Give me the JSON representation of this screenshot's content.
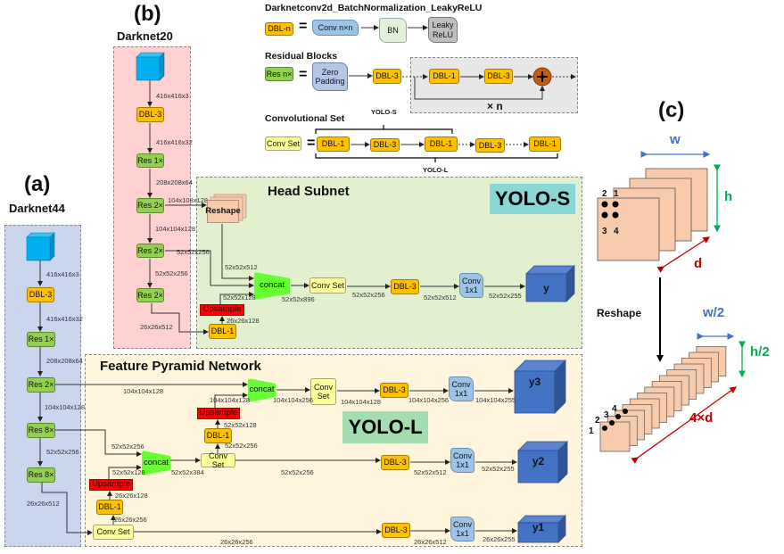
{
  "colors": {
    "dbl": "#FFC000",
    "res": "#92D050",
    "conv_set": "#FFFF99",
    "upsample": "#FF0000",
    "concat": "#66FF33",
    "conv1x1": "#9DC3E6",
    "output": "#4472C4",
    "input": "#00B0F0",
    "darknet44_bg": "#C9D6EE",
    "darknet20_bg": "#FFD1D1",
    "head_bg": "#E2F0D0",
    "fpn_bg": "#FFF5DD",
    "yolo_s_badge": "#8AD7D7",
    "yolo_l_badge": "#A3DDB0",
    "w": "#4472C4",
    "h": "#00B050",
    "d": "#C00000"
  },
  "legend": {
    "dbl_title": "Darknetconv2d_BatchNormalization_LeakyReLU",
    "dbl_n": "DBL-n",
    "equals": "=",
    "conv_nxn": "Conv n×n",
    "bn": "BN",
    "leaky_relu": "Leaky\nReLU",
    "res_title": "Residual Blocks",
    "res_n": "Res n×",
    "zero_padding": "Zero\nPadding",
    "res_dbl3": "DBL-3",
    "loop_dbl1": "DBL-1",
    "loop_dbl3": "DBL-3",
    "times_n": "× n",
    "convset_title": "Convolutional Set",
    "conv_set": "Conv Set",
    "yolo_s": "YOLO-S",
    "yolo_l": "YOLO-L",
    "sequence": [
      "DBL-1",
      "DBL-3",
      "DBL-1",
      "DBL-3",
      "DBL-1"
    ]
  },
  "darknet44": {
    "label": "(a)",
    "title": "Darknet44",
    "blocks": [
      "DBL-3",
      "Res 1×",
      "Res 2×",
      "Res 8×",
      "Res 8×"
    ],
    "dims": [
      "416x416x3",
      "416x416x32",
      "208x208x64",
      "104x104x128",
      "52x52x256",
      "26x26x512"
    ]
  },
  "darknet20": {
    "label": "(b)",
    "title": "Darknet20",
    "blocks": [
      "DBL-3",
      "Res 1×",
      "Res 2×",
      "Res 2×",
      "Res 2×"
    ],
    "dims": [
      "416x416x3",
      "416x416x32",
      "208x208x64",
      "104x108x128",
      "104x104x128",
      "52x52x256",
      "52x52x256",
      "26x26x512"
    ]
  },
  "head_subnet": {
    "title": "Head Subnet",
    "badge": "YOLO-S",
    "reshape": "Reshape",
    "concat": "concat",
    "upsample": "Upsample",
    "dbl1": "DBL-1",
    "conv_set": "Conv Set",
    "dbl3": "DBL-3",
    "conv1x1": "Conv\n1x1",
    "output": "y",
    "dims": [
      "52x52x512",
      "52x52x128",
      "26x26x128",
      "52x52x896",
      "52x52x256",
      "52x52x512",
      "52x52x255"
    ]
  },
  "fpn": {
    "title": "Feature Pyramid Network",
    "badge": "YOLO-L",
    "row1": {
      "concat": "concat",
      "upsample": "Upsample",
      "dbl1": "DBL-1",
      "conv_set": "Conv\nSet",
      "dbl3": "DBL-3",
      "conv1x1": "Conv\n1x1",
      "output": "y3",
      "dims": [
        "104x104x128",
        "104x104x128",
        "52x52x128",
        "52x52x256",
        "104x104x256",
        "104x104x128",
        "104x104x256",
        "104x104x255"
      ]
    },
    "row2": {
      "concat": "concat",
      "upsample": "Upsample",
      "dbl1": "DBL-1",
      "conv_set": "Conv Set",
      "dbl3": "DBL-3",
      "conv1x1": "Conv\n1x1",
      "output": "y2",
      "dims": [
        "52x52x256",
        "52x52x128",
        "52x52x384",
        "52x52x256",
        "52x52x512",
        "52x52x255",
        "26x26x128",
        "26x26x256"
      ]
    },
    "row3": {
      "conv_set": "Conv Set",
      "dbl3": "DBL-3",
      "conv1x1": "Conv\n1x1",
      "output": "y1",
      "dims": [
        "26x26x256",
        "26x26x512",
        "26x26x255"
      ]
    }
  },
  "reshape_demo": {
    "label": "(c)",
    "w": "w",
    "h": "h",
    "d": "d",
    "arrow_label": "Reshape",
    "w_half": "w/2",
    "h_half": "h/2",
    "d_times4": "4×d",
    "channel_labels": [
      "1",
      "2",
      "3",
      "4"
    ]
  }
}
